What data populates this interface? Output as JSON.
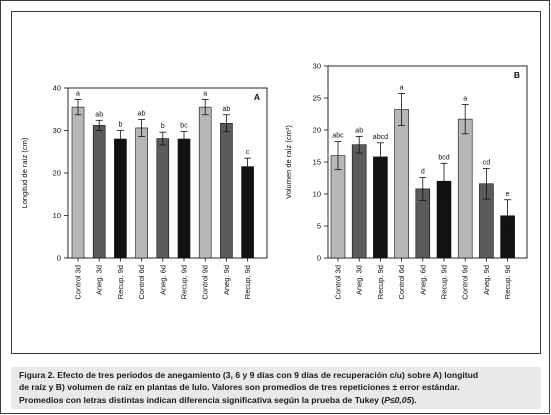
{
  "colors": {
    "light": "#b7b7b7",
    "medium": "#5b5b5b",
    "dark": "#121212"
  },
  "chart_data": [
    {
      "type": "bar",
      "panel": "A",
      "ylabel": "Longitud de raíz (cm)",
      "xlabel": "",
      "ylim": [
        0,
        40
      ],
      "yticks": [
        0,
        10,
        20,
        30,
        40
      ],
      "grid": false,
      "categories": [
        "Control 3d",
        "Aneg. 3d",
        "Recup. 9d",
        "Control 6d",
        "Aneg. 6d",
        "Recup. 9d",
        "Control 9d",
        "Aneg. 9d",
        "Recup. 9d"
      ],
      "values": [
        35.5,
        31.2,
        28.0,
        30.6,
        28.1,
        28.0,
        35.5,
        31.7,
        21.5
      ],
      "errors": [
        1.8,
        1.2,
        2.0,
        2.0,
        1.5,
        1.8,
        1.8,
        2.0,
        2.0
      ],
      "letters": [
        "a",
        "ab",
        "b",
        "ab",
        "b",
        "bc",
        "a",
        "ab",
        "c"
      ],
      "shades": [
        "light",
        "medium",
        "dark",
        "light",
        "medium",
        "dark",
        "light",
        "medium",
        "dark"
      ]
    },
    {
      "type": "bar",
      "panel": "B",
      "ylabel": "Volumen de raíz (cm³)",
      "xlabel": "",
      "ylim": [
        0,
        30
      ],
      "yticks": [
        0,
        5,
        10,
        15,
        20,
        25,
        30
      ],
      "grid": false,
      "categories": [
        "Control 3d",
        "Aneg. 3d",
        "Recup. 9d",
        "Control 6d",
        "Aneg. 6d",
        "Recup. 9d",
        "Control 9d",
        "Aneg. 9d",
        "Recup. 9d"
      ],
      "values": [
        16.0,
        17.7,
        15.8,
        23.2,
        10.8,
        12.0,
        21.7,
        11.6,
        6.6
      ],
      "errors": [
        2.2,
        1.3,
        2.2,
        2.5,
        1.8,
        2.8,
        2.3,
        2.4,
        2.5
      ],
      "letters": [
        "abc",
        "ab",
        "abcd",
        "a",
        "d",
        "bcd",
        "a",
        "cd",
        "e"
      ],
      "shades": [
        "light",
        "medium",
        "dark",
        "light",
        "medium",
        "dark",
        "light",
        "medium",
        "dark"
      ]
    }
  ],
  "caption": {
    "line1": "Figura 2.  Efecto de tres periodos de anegamiento (3, 6 y 9 días con 9 días de recuperación c/u) sobre A) longitud",
    "line2": "de raíz y B) volumen de raíz en plantas de lulo. Valores son promedios de tres repeticiones ± error estándar.",
    "line3_pre": "Promedios con letras distintas indican diferencia significativa según la prueba de Tukey (",
    "line3_stat": "P≤0,05",
    "line3_post": ")."
  }
}
